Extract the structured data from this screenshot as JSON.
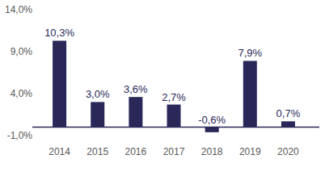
{
  "chart_data": {
    "type": "bar",
    "categories": [
      "2014",
      "2015",
      "2016",
      "2017",
      "2018",
      "2019",
      "2020"
    ],
    "values": [
      10.3,
      3.0,
      3.6,
      2.7,
      -0.6,
      7.9,
      0.7
    ],
    "value_labels": [
      "10,3%",
      "3,0%",
      "3,6%",
      "2,7%",
      "-0,6%",
      "7,9%",
      "0,7%"
    ],
    "color": "#2a2858",
    "ylim": [
      -1,
      14
    ],
    "yticks": [
      {
        "value": -1,
        "label": "-1,0%"
      },
      {
        "value": 4,
        "label": "4,0%"
      },
      {
        "value": 9,
        "label": "9,0%"
      },
      {
        "value": 14,
        "label": "14,0%"
      }
    ],
    "grid": false,
    "data_labels": true
  }
}
